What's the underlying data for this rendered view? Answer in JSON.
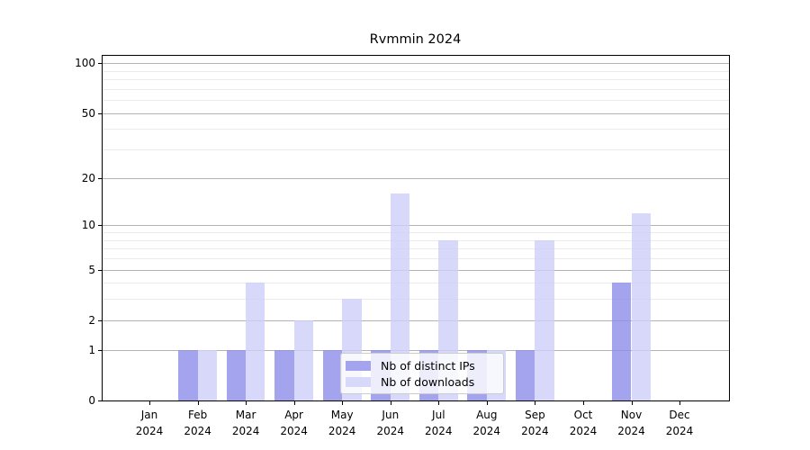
{
  "chart_data": {
    "type": "bar",
    "title": "Rvmmin 2024",
    "x_months": [
      "Jan",
      "Feb",
      "Mar",
      "Apr",
      "May",
      "Jun",
      "Jul",
      "Aug",
      "Sep",
      "Oct",
      "Nov",
      "Dec"
    ],
    "x_year": "2024",
    "series": [
      {
        "name": "Nb of distinct IPs",
        "bar_color": "rgba(141,141,234,0.8)",
        "legend_color": "#a4a4ee",
        "values": [
          0,
          1,
          1,
          1,
          1,
          1,
          1,
          1,
          1,
          0,
          4,
          0
        ]
      },
      {
        "name": "Nb of downloads",
        "bar_color": "rgba(206,206,249,0.8)",
        "legend_color": "#d8d8fa",
        "values": [
          0,
          1,
          4,
          2,
          3,
          16,
          8,
          1,
          8,
          0,
          12,
          0
        ]
      }
    ],
    "yscale": "log1p",
    "ylim": [
      0,
      112
    ],
    "yticks": [
      0,
      1,
      2,
      5,
      10,
      20,
      50,
      100
    ],
    "yminor_ticks": [
      3,
      4,
      6,
      7,
      8,
      9,
      30,
      40,
      60,
      70,
      80,
      90
    ],
    "grid": "on",
    "legend_position": "lower center",
    "colors": {
      "grid_major": "#b3b3b3",
      "grid_minor": "#ebebeb",
      "axis": "#000000",
      "background": "#ffffff"
    }
  }
}
